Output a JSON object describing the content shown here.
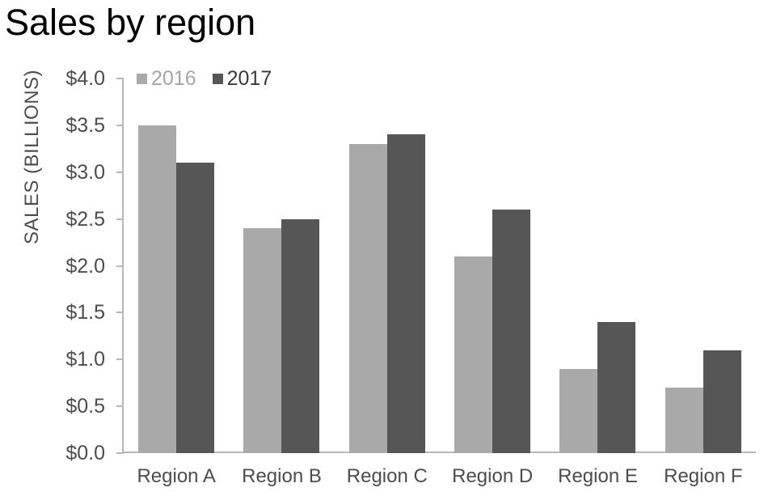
{
  "title": "Sales by region",
  "colors": {
    "background": "#ffffff",
    "title_text": "#000000",
    "axis_line": "#b7b7b7",
    "axis_text": "#4d4d4d"
  },
  "chart_data": {
    "type": "bar",
    "title": "Sales by region",
    "categories": [
      "Region A",
      "Region B",
      "Region C",
      "Region D",
      "Region E",
      "Region F"
    ],
    "series": [
      {
        "name": "2016",
        "color": "#a9a9a9",
        "legend_text_color": "#a6a6a6",
        "values": [
          3.5,
          2.4,
          3.3,
          2.1,
          0.9,
          0.7
        ]
      },
      {
        "name": "2017",
        "color": "#565656",
        "legend_text_color": "#3a3a3a",
        "values": [
          3.1,
          2.5,
          3.4,
          2.6,
          1.4,
          1.1
        ]
      }
    ],
    "xlabel": "",
    "ylabel": "SALES (BILLIONS)",
    "ylim": [
      0,
      4.0
    ],
    "ytick_step": 0.5,
    "ytick_labels": [
      "$0.0",
      "$0.5",
      "$1.0",
      "$1.5",
      "$2.0",
      "$2.5",
      "$3.0",
      "$3.5",
      "$4.0"
    ],
    "grid": false,
    "legend_position": "top-left"
  }
}
